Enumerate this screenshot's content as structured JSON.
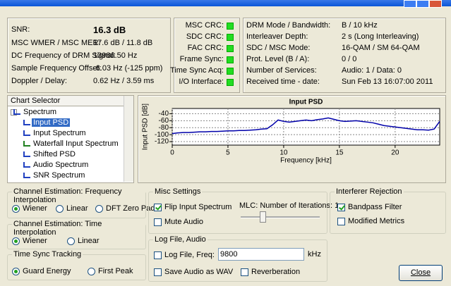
{
  "status": [
    {
      "label": "SNR:",
      "value": "16.3 dB"
    },
    {
      "label": "MSC WMER / MSC MER:",
      "value": "17.6 dB / 11.8 dB"
    },
    {
      "label": "DC Frequency of DRM Signal:",
      "value": "13986.50 Hz"
    },
    {
      "label": "Sample Frequency Offset:",
      "value": "-6.03 Hz (-125 ppm)"
    },
    {
      "label": "Doppler / Delay:",
      "value": "0.62 Hz / 3.59 ms"
    }
  ],
  "indicators": [
    "MSC CRC:",
    "SDC CRC:",
    "FAC CRC:",
    "Frame Sync:",
    "Time Sync Acq:",
    "I/O Interface:"
  ],
  "info": [
    {
      "label": "DRM Mode / Bandwidth:",
      "value": "B / 10 kHz"
    },
    {
      "label": "Interleaver Depth:",
      "value": "2 s (Long Interleaving)"
    },
    {
      "label": "SDC / MSC Mode:",
      "value": "16-QAM / SM 64-QAM"
    },
    {
      "label": "Prot. Level (B / A):",
      "value": "0 / 0"
    },
    {
      "label": "Number of Services:",
      "value": "Audio: 1 / Data: 0"
    },
    {
      "label": "Received time - date:",
      "value": "Sun Feb 13 16:07:00 2011"
    }
  ],
  "chart_selector": {
    "title": "Chart Selector",
    "items": [
      {
        "label": "Spectrum",
        "level": 0
      },
      {
        "label": "Input PSD",
        "level": 1,
        "selected": true
      },
      {
        "label": "Input Spectrum",
        "level": 1
      },
      {
        "label": "Waterfall Input Spectrum",
        "level": 1
      },
      {
        "label": "Shifted PSD",
        "level": 1
      },
      {
        "label": "Audio Spectrum",
        "level": 1
      },
      {
        "label": "SNR Spectrum",
        "level": 1
      }
    ]
  },
  "psd_plot": {
    "type": "line",
    "title": "Input PSD",
    "xlabel": "Frequency [kHz]",
    "ylabel": "Input PSD [dB]",
    "color": "#0000aa",
    "x": [
      0,
      0.5,
      1,
      1.5,
      2,
      2.5,
      3,
      3.5,
      4,
      4.5,
      5,
      5.5,
      6,
      6.5,
      7,
      7.5,
      8,
      8.5,
      9,
      9.5,
      10,
      10.5,
      11,
      11.5,
      12,
      12.5,
      13,
      13.5,
      14,
      14.5,
      15,
      15.5,
      16,
      16.5,
      17,
      17.5,
      18,
      18.5,
      19,
      19.5,
      20,
      20.5,
      21,
      21.5,
      22,
      22.5,
      23,
      23.5,
      24
    ],
    "values": [
      -97,
      -95,
      -94,
      -94,
      -93,
      -92,
      -92,
      -91,
      -91,
      -90,
      -89,
      -89,
      -88,
      -88,
      -87,
      -86,
      -84,
      -83,
      -72,
      -58,
      -62,
      -64,
      -62,
      -60,
      -58,
      -60,
      -57,
      -55,
      -52,
      -56,
      -60,
      -62,
      -61,
      -60,
      -62,
      -64,
      -66,
      -70,
      -74,
      -76,
      -78,
      -80,
      -82,
      -84,
      -86,
      -86,
      -87,
      -84,
      -62
    ],
    "xlim": [
      0,
      24
    ],
    "ylim": [
      -130,
      -25
    ],
    "xticks": [
      0,
      5,
      10,
      15,
      20
    ],
    "yticks": [
      -40,
      -60,
      -80,
      -100,
      -120
    ],
    "grid": true
  },
  "freq_interp": {
    "title": "Channel Estimation: Frequency Interpolation",
    "options": [
      {
        "label": "Wiener",
        "checked": true
      },
      {
        "label": "Linear",
        "checked": false
      },
      {
        "label": "DFT Zero Pad.",
        "checked": false
      }
    ]
  },
  "time_interp": {
    "title": "Channel Estimation: Time Interpolation",
    "options": [
      {
        "label": "Wiener",
        "checked": true
      },
      {
        "label": "Linear",
        "checked": false
      }
    ]
  },
  "time_sync": {
    "title": "Time Sync Tracking",
    "options": [
      {
        "label": "Guard Energy",
        "checked": true
      },
      {
        "label": "First Peak",
        "checked": false
      }
    ]
  },
  "misc": {
    "title": "Misc Settings",
    "flip": {
      "label": "Flip Input Spectrum",
      "checked": true
    },
    "mute": {
      "label": "Mute Audio",
      "checked": false
    },
    "mlc_label": "MLC: Number of Iterations: 1"
  },
  "log": {
    "title": "Log File, Audio",
    "logfile": {
      "label": "Log File, Freq:",
      "checked": false
    },
    "freq": "9800",
    "unit": "kHz",
    "wav": {
      "label": "Save Audio as WAV",
      "checked": false
    },
    "reverb": {
      "label": "Reverberation",
      "checked": false
    }
  },
  "interferer": {
    "title": "Interferer Rejection",
    "bandpass": {
      "label": "Bandpass Filter",
      "checked": true
    },
    "modified": {
      "label": "Modified Metrics",
      "checked": false
    }
  },
  "close": "Close"
}
